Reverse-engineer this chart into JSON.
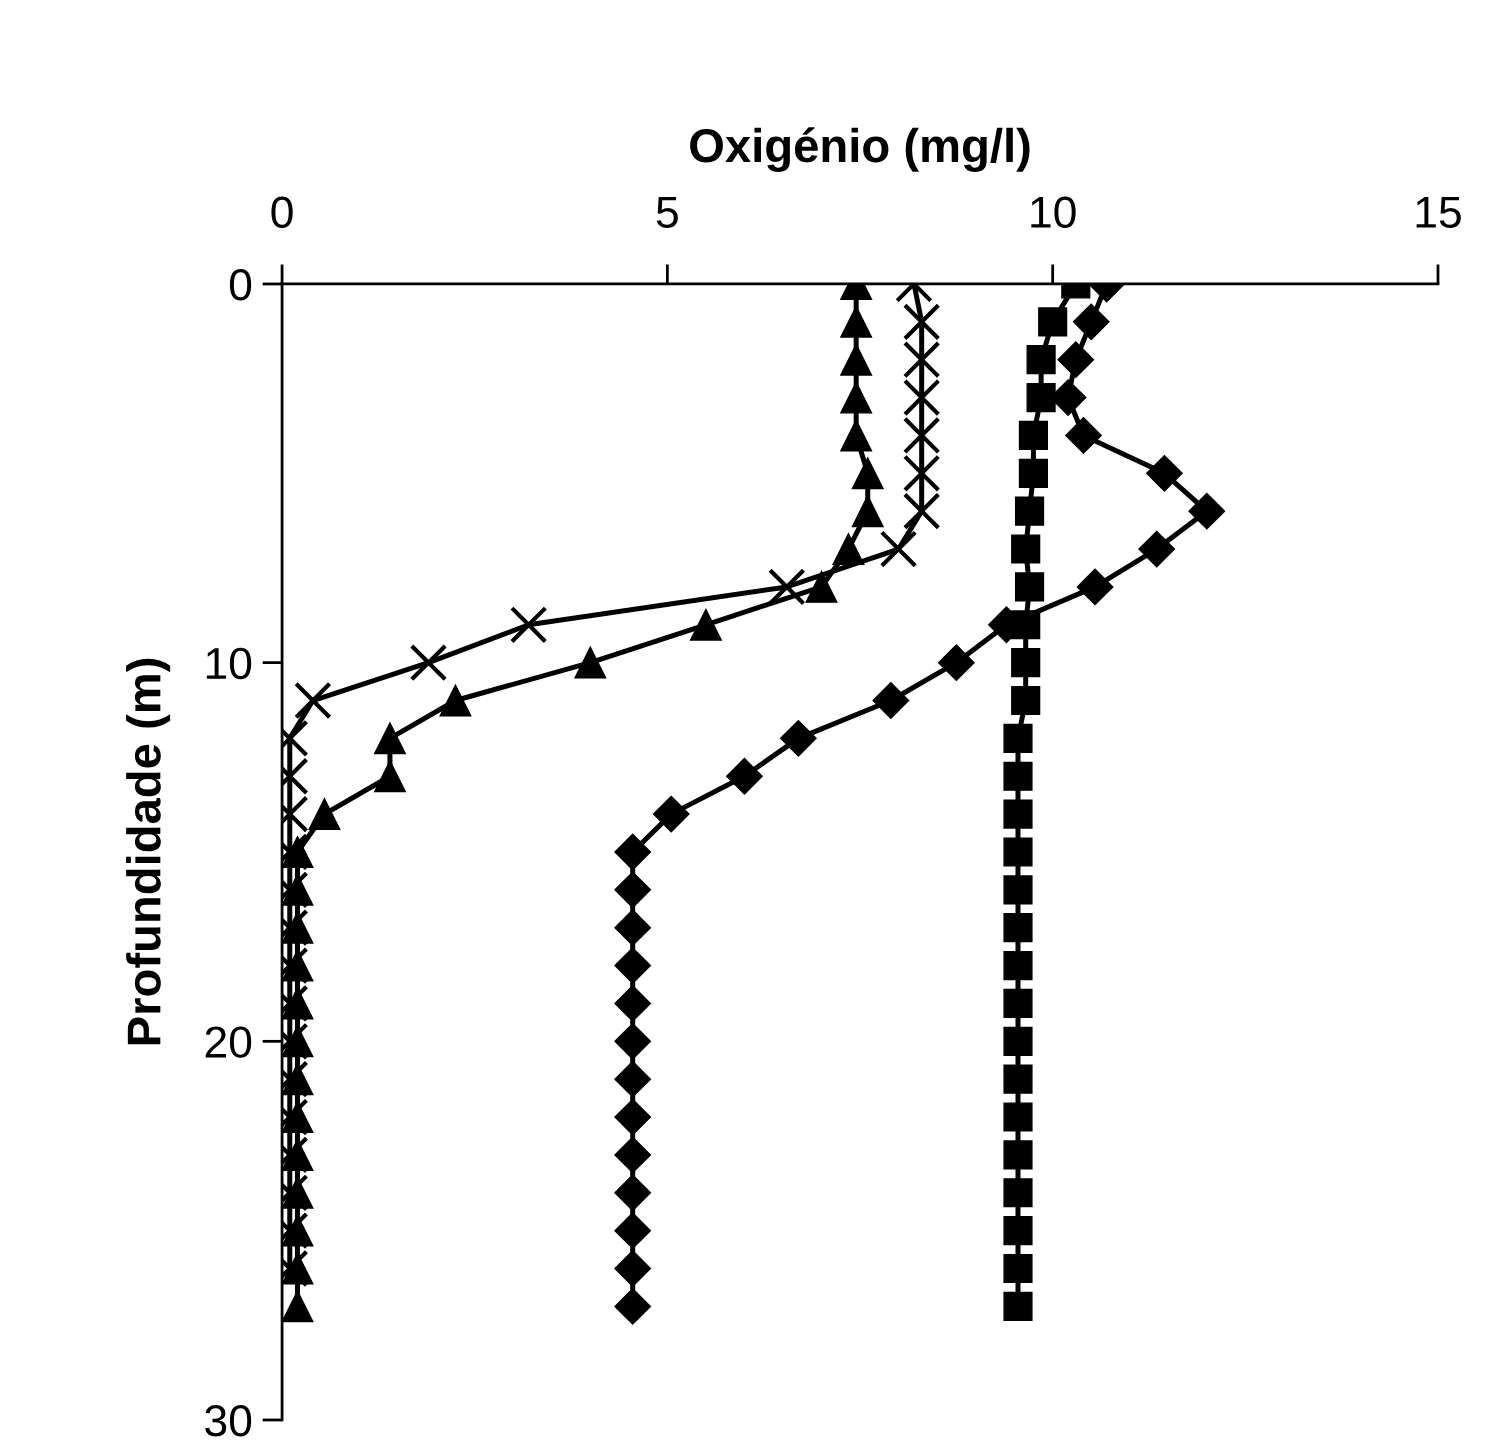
{
  "chart_data": {
    "type": "line",
    "xlabel": "Oxigénio (mg/l)",
    "ylabel": "Profundidade (m)",
    "xlim": [
      0,
      15
    ],
    "xticks": [
      0,
      5,
      10,
      15
    ],
    "ylim": [
      30,
      0
    ],
    "yticks": [
      0,
      10,
      20,
      30
    ],
    "grid": false,
    "legend": false,
    "series": [
      {
        "color": "#000000",
        "marker": "triangle",
        "x": [
          7.45,
          7.45,
          7.45,
          7.45,
          7.45,
          7.6,
          7.6,
          7.35,
          7.0,
          5.5,
          4.0,
          2.25,
          1.4,
          1.4,
          0.55,
          0.2,
          0.2,
          0.2,
          0.2,
          0.2,
          0.2,
          0.2,
          0.2,
          0.2,
          0.2,
          0.2,
          0.2,
          0.2
        ],
        "values": [
          0,
          1,
          2,
          3,
          4,
          5,
          6,
          7,
          8,
          9,
          10,
          11,
          12,
          13,
          14,
          15,
          16,
          17,
          18,
          19,
          20,
          21,
          22,
          23,
          24,
          25,
          26,
          27
        ]
      },
      {
        "color": "#000000",
        "marker": "cross",
        "x": [
          8.2,
          8.3,
          8.3,
          8.3,
          8.3,
          8.3,
          8.3,
          8.0,
          6.55,
          3.2,
          1.9,
          0.4,
          0.1,
          0.1,
          0.1,
          0.1,
          0.1,
          0.1,
          0.1,
          0.1,
          0.1,
          0.1,
          0.1,
          0.1,
          0.1,
          0.1,
          0.1
        ],
        "values": [
          0,
          1,
          2,
          3,
          4,
          5,
          6,
          7,
          8,
          9,
          10,
          11,
          12,
          13,
          14,
          15,
          16,
          17,
          18,
          19,
          20,
          21,
          22,
          23,
          24,
          25,
          26
        ]
      },
      {
        "color": "#000000",
        "marker": "diamond",
        "x": [
          10.7,
          10.5,
          10.3,
          10.2,
          10.4,
          11.45,
          12.0,
          11.35,
          10.55,
          9.4,
          8.75,
          7.9,
          6.7,
          6.0,
          5.05,
          4.55,
          4.55,
          4.55,
          4.55,
          4.55,
          4.55,
          4.55,
          4.55,
          4.55,
          4.55,
          4.55,
          4.55,
          4.55
        ],
        "values": [
          0,
          1,
          2,
          3,
          4,
          5,
          6,
          7,
          8,
          9,
          10,
          11,
          12,
          13,
          14,
          15,
          16,
          17,
          18,
          19,
          20,
          21,
          22,
          23,
          24,
          25,
          26,
          27
        ]
      },
      {
        "color": "#000000",
        "marker": "square",
        "x": [
          10.3,
          10.0,
          9.85,
          9.85,
          9.75,
          9.75,
          9.7,
          9.65,
          9.7,
          9.65,
          9.65,
          9.65,
          9.55,
          9.55,
          9.55,
          9.55,
          9.55,
          9.55,
          9.55,
          9.55,
          9.55,
          9.55,
          9.55,
          9.55,
          9.55,
          9.55,
          9.55,
          9.55
        ],
        "values": [
          0,
          1,
          2,
          3,
          4,
          5,
          6,
          7,
          8,
          9,
          10,
          11,
          12,
          13,
          14,
          15,
          16,
          17,
          18,
          19,
          20,
          21,
          22,
          23,
          24,
          25,
          26,
          27
        ]
      }
    ]
  }
}
